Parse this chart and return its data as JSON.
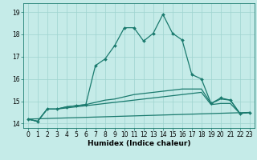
{
  "xlabel": "Humidex (Indice chaleur)",
  "background_color": "#c5ebe8",
  "grid_color": "#9ed4cf",
  "line_color": "#1a7a6e",
  "xlim": [
    -0.5,
    23.5
  ],
  "ylim": [
    13.8,
    19.4
  ],
  "xticks": [
    0,
    1,
    2,
    3,
    4,
    5,
    6,
    7,
    8,
    9,
    10,
    11,
    12,
    13,
    14,
    15,
    16,
    17,
    18,
    19,
    20,
    21,
    22,
    23
  ],
  "yticks": [
    14,
    15,
    16,
    17,
    18,
    19
  ],
  "line1_x": [
    0,
    1,
    2,
    3,
    4,
    5,
    6,
    7,
    8,
    9,
    10,
    11,
    12,
    13,
    14,
    15,
    16,
    17,
    18,
    19,
    20,
    21,
    22,
    23
  ],
  "line1_y": [
    14.2,
    14.1,
    14.65,
    14.65,
    14.75,
    14.8,
    14.85,
    16.6,
    16.9,
    17.5,
    18.3,
    18.3,
    17.7,
    18.05,
    18.9,
    18.05,
    17.75,
    16.2,
    16.0,
    14.9,
    15.15,
    15.05,
    14.45,
    14.5
  ],
  "line2_x": [
    0,
    1,
    2,
    3,
    4,
    5,
    6,
    7,
    8,
    9,
    10,
    11,
    12,
    13,
    14,
    15,
    16,
    17,
    18,
    19,
    20,
    21,
    22,
    23
  ],
  "line2_y": [
    14.2,
    14.1,
    14.65,
    14.65,
    14.75,
    14.8,
    14.85,
    14.95,
    15.05,
    15.1,
    15.2,
    15.3,
    15.35,
    15.4,
    15.45,
    15.5,
    15.55,
    15.55,
    15.55,
    14.9,
    15.1,
    15.05,
    14.45,
    14.5
  ],
  "line3_x": [
    0,
    1,
    2,
    3,
    4,
    5,
    6,
    7,
    8,
    9,
    10,
    11,
    12,
    13,
    14,
    15,
    16,
    17,
    18,
    19,
    20,
    21,
    22,
    23
  ],
  "line3_y": [
    14.2,
    14.1,
    14.65,
    14.65,
    14.7,
    14.75,
    14.8,
    14.85,
    14.9,
    14.95,
    15.0,
    15.05,
    15.1,
    15.15,
    15.2,
    15.25,
    15.3,
    15.35,
    15.4,
    14.85,
    14.9,
    14.9,
    14.45,
    14.5
  ],
  "line4_x": [
    0,
    23
  ],
  "line4_y": [
    14.2,
    14.5
  ],
  "marker": "D",
  "marker_size": 2.0,
  "line_width": 0.9,
  "tick_fontsize": 5.5,
  "xlabel_fontsize": 6.5
}
